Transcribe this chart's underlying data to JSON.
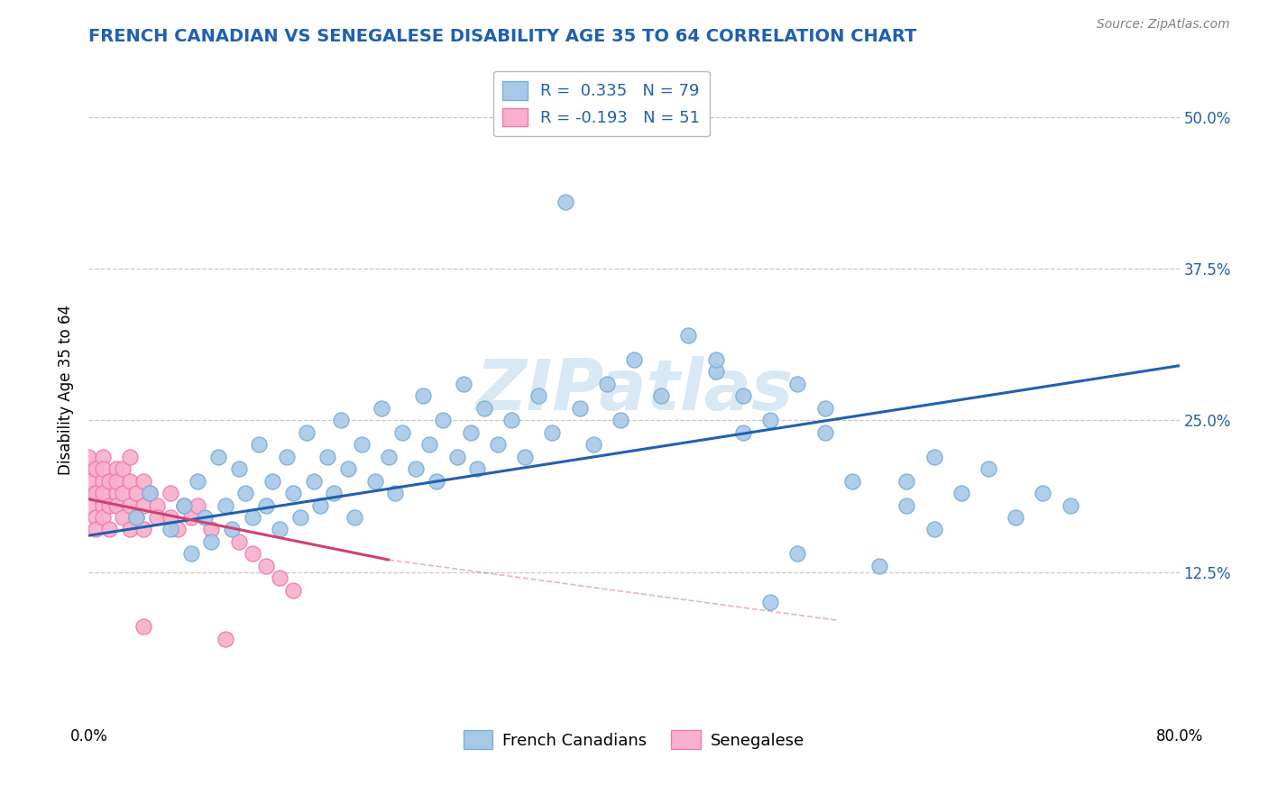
{
  "title": "FRENCH CANADIAN VS SENEGALESE DISABILITY AGE 35 TO 64 CORRELATION CHART",
  "source": "Source: ZipAtlas.com",
  "ylabel": "Disability Age 35 to 64",
  "xlim": [
    0,
    0.8
  ],
  "ylim": [
    0,
    0.55
  ],
  "ytick_positions": [
    0.125,
    0.25,
    0.375,
    0.5
  ],
  "ytick_labels": [
    "12.5%",
    "25.0%",
    "37.5%",
    "50.0%"
  ],
  "r_blue": 0.335,
  "n_blue": 79,
  "r_pink": -0.193,
  "n_pink": 51,
  "blue_scatter_color": "#a8c8e8",
  "blue_edge_color": "#7aafd4",
  "pink_scatter_color": "#f8b0cc",
  "pink_edge_color": "#f07aaa",
  "blue_line_color": "#2060b0",
  "pink_line_color": "#d04070",
  "grid_color": "#c8c8c8",
  "title_color": "#2060b0",
  "legend_text_color": "#2060b0",
  "watermark_color": "#d8e8f4",
  "blue_trend_x0": 0.0,
  "blue_trend_y0": 0.155,
  "blue_trend_x1": 0.8,
  "blue_trend_y1": 0.295,
  "pink_trend_x0": 0.0,
  "pink_trend_y0": 0.185,
  "pink_trend_x1": 0.22,
  "pink_trend_y1": 0.135,
  "blue_x": [
    0.035,
    0.045,
    0.06,
    0.07,
    0.075,
    0.08,
    0.085,
    0.09,
    0.095,
    0.1,
    0.105,
    0.11,
    0.115,
    0.12,
    0.125,
    0.13,
    0.135,
    0.14,
    0.145,
    0.15,
    0.155,
    0.16,
    0.165,
    0.17,
    0.175,
    0.18,
    0.185,
    0.19,
    0.195,
    0.2,
    0.21,
    0.215,
    0.22,
    0.225,
    0.23,
    0.24,
    0.245,
    0.25,
    0.255,
    0.26,
    0.27,
    0.275,
    0.28,
    0.285,
    0.29,
    0.3,
    0.31,
    0.32,
    0.33,
    0.34,
    0.35,
    0.36,
    0.37,
    0.38,
    0.39,
    0.4,
    0.42,
    0.44,
    0.46,
    0.48,
    0.5,
    0.52,
    0.54,
    0.56,
    0.58,
    0.6,
    0.62,
    0.64,
    0.66,
    0.68,
    0.6,
    0.62,
    0.7,
    0.72,
    0.46,
    0.48,
    0.5,
    0.52,
    0.54
  ],
  "blue_y": [
    0.17,
    0.19,
    0.16,
    0.18,
    0.14,
    0.2,
    0.17,
    0.15,
    0.22,
    0.18,
    0.16,
    0.21,
    0.19,
    0.17,
    0.23,
    0.18,
    0.2,
    0.16,
    0.22,
    0.19,
    0.17,
    0.24,
    0.2,
    0.18,
    0.22,
    0.19,
    0.25,
    0.21,
    0.17,
    0.23,
    0.2,
    0.26,
    0.22,
    0.19,
    0.24,
    0.21,
    0.27,
    0.23,
    0.2,
    0.25,
    0.22,
    0.28,
    0.24,
    0.21,
    0.26,
    0.23,
    0.25,
    0.22,
    0.27,
    0.24,
    0.43,
    0.26,
    0.23,
    0.28,
    0.25,
    0.3,
    0.27,
    0.32,
    0.29,
    0.24,
    0.1,
    0.14,
    0.24,
    0.2,
    0.13,
    0.18,
    0.22,
    0.19,
    0.21,
    0.17,
    0.2,
    0.16,
    0.19,
    0.18,
    0.3,
    0.27,
    0.25,
    0.28,
    0.26
  ],
  "pink_x": [
    0.0,
    0.0,
    0.0,
    0.0,
    0.0,
    0.005,
    0.005,
    0.005,
    0.005,
    0.01,
    0.01,
    0.01,
    0.01,
    0.01,
    0.01,
    0.015,
    0.015,
    0.015,
    0.02,
    0.02,
    0.02,
    0.02,
    0.025,
    0.025,
    0.025,
    0.03,
    0.03,
    0.03,
    0.03,
    0.035,
    0.035,
    0.04,
    0.04,
    0.04,
    0.045,
    0.05,
    0.05,
    0.06,
    0.06,
    0.065,
    0.07,
    0.075,
    0.08,
    0.09,
    0.1,
    0.11,
    0.12,
    0.13,
    0.14,
    0.15,
    0.04
  ],
  "pink_y": [
    0.19,
    0.21,
    0.2,
    0.18,
    0.22,
    0.17,
    0.19,
    0.21,
    0.16,
    0.2,
    0.18,
    0.22,
    0.17,
    0.19,
    0.21,
    0.18,
    0.2,
    0.16,
    0.19,
    0.21,
    0.18,
    0.2,
    0.17,
    0.19,
    0.21,
    0.18,
    0.2,
    0.16,
    0.22,
    0.19,
    0.17,
    0.2,
    0.18,
    0.16,
    0.19,
    0.18,
    0.17,
    0.17,
    0.19,
    0.16,
    0.18,
    0.17,
    0.18,
    0.16,
    0.07,
    0.15,
    0.14,
    0.13,
    0.12,
    0.11,
    0.08
  ]
}
